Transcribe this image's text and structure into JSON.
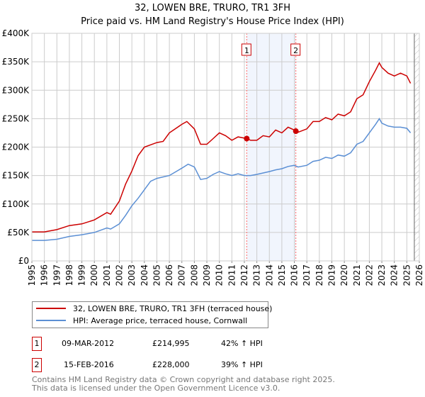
{
  "title": "32, LOWEN BRE, TRURO, TR1 3FH",
  "subtitle": "Price paid vs. HM Land Registry's House Price Index (HPI)",
  "chart_data": {
    "type": "line",
    "ylim": [
      0,
      400000
    ],
    "xlim": [
      1995,
      2026
    ],
    "yticks": [
      0,
      50000,
      100000,
      150000,
      200000,
      250000,
      300000,
      350000,
      400000
    ],
    "ytick_labels": [
      "£0",
      "£50K",
      "£100K",
      "£150K",
      "£200K",
      "£250K",
      "£300K",
      "£350K",
      "£400K"
    ],
    "xticks": [
      1995,
      1996,
      1997,
      1998,
      1999,
      2000,
      2001,
      2002,
      2003,
      2004,
      2005,
      2006,
      2007,
      2008,
      2009,
      2010,
      2011,
      2012,
      2013,
      2014,
      2015,
      2016,
      2017,
      2018,
      2019,
      2020,
      2021,
      2022,
      2023,
      2024,
      2025,
      2026
    ],
    "grid": true,
    "series": [
      {
        "name": "32, LOWEN BRE, TRURO, TR1 3FH (terraced house)",
        "color": "#cc0000",
        "x": [
          1995,
          1996,
          1997,
          1998,
          1999,
          2000,
          2001,
          2001.3,
          2002,
          2002.5,
          2003,
          2003.5,
          2004,
          2005,
          2005.5,
          2006,
          2007,
          2007.4,
          2008,
          2008.5,
          2009,
          2009.5,
          2010,
          2010.5,
          2011,
          2011.5,
          2012.2,
          2012.5,
          2013,
          2013.5,
          2014,
          2014.5,
          2015,
          2015.5,
          2016,
          2016.3,
          2017,
          2017.5,
          2018,
          2018.5,
          2019,
          2019.5,
          2020,
          2020.5,
          2021,
          2021.5,
          2022,
          2022.5,
          2022.8,
          2023,
          2023.5,
          2024,
          2024.5,
          2025,
          2025.3
        ],
        "y": [
          51000,
          51000,
          55000,
          62000,
          65000,
          72000,
          85000,
          82000,
          105000,
          135000,
          158000,
          185000,
          200000,
          208000,
          210000,
          225000,
          240000,
          245000,
          232000,
          205000,
          205000,
          215000,
          225000,
          220000,
          212000,
          218000,
          215000,
          212000,
          212000,
          220000,
          218000,
          230000,
          225000,
          235000,
          230000,
          226000,
          232000,
          245000,
          245000,
          252000,
          248000,
          258000,
          255000,
          262000,
          285000,
          292000,
          315000,
          335000,
          348000,
          340000,
          330000,
          325000,
          330000,
          325000,
          312000
        ]
      },
      {
        "name": "HPI: Average price, terraced house, Cornwall",
        "color": "#5b8fd4",
        "x": [
          1995,
          1996,
          1997,
          1998,
          1999,
          2000,
          2001,
          2001.3,
          2002,
          2002.5,
          2003,
          2003.5,
          2004,
          2004.5,
          2005,
          2006,
          2007,
          2007.5,
          2008,
          2008.5,
          2009,
          2009.5,
          2010,
          2010.5,
          2011,
          2011.5,
          2012,
          2012.5,
          2013,
          2014,
          2014.5,
          2015,
          2015.5,
          2016,
          2016.3,
          2017,
          2017.5,
          2018,
          2018.5,
          2019,
          2019.5,
          2020,
          2020.5,
          2021,
          2021.5,
          2022,
          2022.5,
          2022.8,
          2023,
          2023.5,
          2024,
          2024.5,
          2025,
          2025.3
        ],
        "y": [
          36000,
          36000,
          38000,
          43000,
          46000,
          50000,
          58000,
          56000,
          65000,
          80000,
          97000,
          110000,
          125000,
          140000,
          145000,
          150000,
          163000,
          170000,
          165000,
          143000,
          145000,
          152000,
          157000,
          153000,
          150000,
          153000,
          150000,
          150000,
          152000,
          157000,
          160000,
          162000,
          166000,
          168000,
          165000,
          168000,
          175000,
          177000,
          182000,
          180000,
          186000,
          184000,
          190000,
          205000,
          210000,
          225000,
          240000,
          250000,
          242000,
          237000,
          235000,
          235000,
          233000,
          225000
        ]
      }
    ],
    "sales": [
      {
        "label": "1",
        "x": 2012.19,
        "price": 214995,
        "date": "09-MAR-2012",
        "price_text": "£214,995",
        "hpi": "42% ↑ HPI"
      },
      {
        "label": "2",
        "x": 2016.12,
        "price": 228000,
        "date": "15-FEB-2016",
        "price_text": "£228,000",
        "hpi": "39% ↑ HPI"
      }
    ],
    "hatch_from": 2025.6
  },
  "footer": {
    "line1": "Contains HM Land Registry data © Crown copyright and database right 2025.",
    "line2": "This data is licensed under the Open Government Licence v3.0."
  }
}
